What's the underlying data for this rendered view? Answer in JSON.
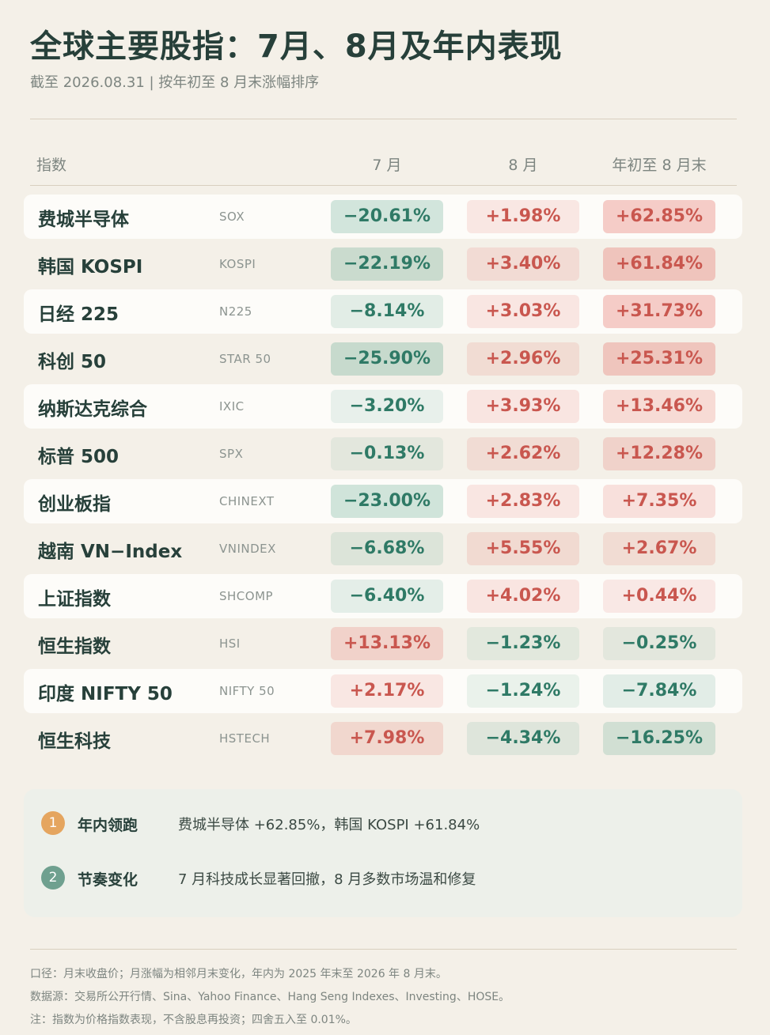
{
  "title": "全球主要股指：7月、8月及年内表现",
  "subtitle": "截至 2026.08.31 | 按年初至 8 月末涨幅排序",
  "headers": {
    "index": "指数",
    "jul": "7 月",
    "aug": "8 月",
    "ytd": "年初至 8 月末"
  },
  "colors": {
    "positive_text": "#c9574f",
    "negative_text": "#2f7a66",
    "badge_1": "#e5a55f",
    "badge_2": "#6fa08f"
  },
  "rows": [
    {
      "name": "费城半导体",
      "code": "SOX",
      "jul": "−20.61%",
      "aug": "+1.98%",
      "ytd": "+62.85%"
    },
    {
      "name": "韩国 KOSPI",
      "code": "KOSPI",
      "jul": "−22.19%",
      "aug": "+3.40%",
      "ytd": "+61.84%"
    },
    {
      "name": "日经 225",
      "code": "N225",
      "jul": "−8.14%",
      "aug": "+3.03%",
      "ytd": "+31.73%"
    },
    {
      "name": "科创 50",
      "code": "STAR 50",
      "jul": "−25.90%",
      "aug": "+2.96%",
      "ytd": "+25.31%"
    },
    {
      "name": "纳斯达克综合",
      "code": "IXIC",
      "jul": "−3.20%",
      "aug": "+3.93%",
      "ytd": "+13.46%"
    },
    {
      "name": "标普 500",
      "code": "SPX",
      "jul": "−0.13%",
      "aug": "+2.62%",
      "ytd": "+12.28%"
    },
    {
      "name": "创业板指",
      "code": "CHINEXT",
      "jul": "−23.00%",
      "aug": "+2.83%",
      "ytd": "+7.35%"
    },
    {
      "name": "越南 VN−Index",
      "code": "VNINDEX",
      "jul": "−6.68%",
      "aug": "+5.55%",
      "ytd": "+2.67%"
    },
    {
      "name": "上证指数",
      "code": "SHCOMP",
      "jul": "−6.40%",
      "aug": "+4.02%",
      "ytd": "+0.44%"
    },
    {
      "name": "恒生指数",
      "code": "HSI",
      "jul": "+13.13%",
      "aug": "−1.23%",
      "ytd": "−0.25%"
    },
    {
      "name": "印度 NIFTY 50",
      "code": "NIFTY 50",
      "jul": "+2.17%",
      "aug": "−1.24%",
      "ytd": "−7.84%"
    },
    {
      "name": "恒生科技",
      "code": "HSTECH",
      "jul": "+7.98%",
      "aug": "−4.34%",
      "ytd": "−16.25%"
    }
  ],
  "notes": [
    {
      "num": "1",
      "label": "年内领跑",
      "text": "费城半导体 +62.85%，韩国 KOSPI +61.84%"
    },
    {
      "num": "2",
      "label": "节奏变化",
      "text": "7 月科技成长显著回撤，8 月多数市场温和修复"
    }
  ],
  "footer": [
    "口径：月末收盘价；月涨幅为相邻月末变化，年内为 2025 年末至 2026 年 8 月末。",
    "数据源：交易所公开行情、Sina、Yahoo Finance、Hang Seng Indexes、Investing、HOSE。",
    "注：指数为价格指数表现，不含股息再投资；四舍五入至 0.01%。"
  ]
}
